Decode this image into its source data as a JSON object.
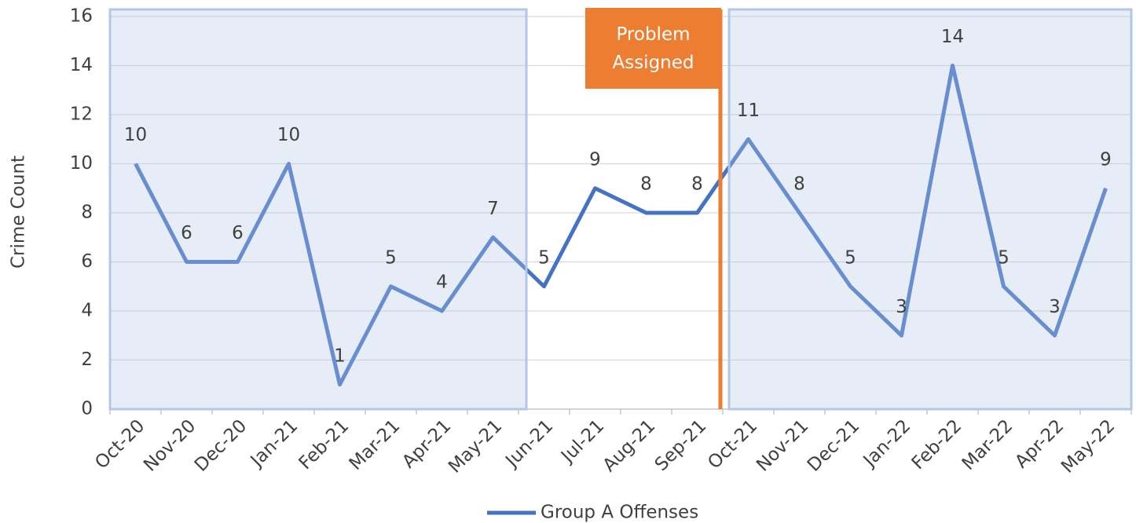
{
  "chart_data": {
    "type": "line",
    "y_axis_label": "Crime Count",
    "categories": [
      "Oct-20",
      "Nov-20",
      "Dec-20",
      "Jan-21",
      "Feb-21",
      "Mar-21",
      "Apr-21",
      "May-21",
      "Jun-21",
      "Jul-21",
      "Aug-21",
      "Sep-21",
      "Oct-21",
      "Nov-21",
      "Dec-21",
      "Jan-22",
      "Feb-22",
      "Mar-22",
      "Apr-22",
      "May-22"
    ],
    "series": [
      {
        "name": "Group A Offenses",
        "color": "#4472c4",
        "values": [
          10,
          6,
          6,
          10,
          1,
          5,
          4,
          7,
          5,
          9,
          8,
          8,
          11,
          8,
          5,
          3,
          14,
          5,
          3,
          9
        ]
      }
    ],
    "ylim": [
      0,
      16
    ],
    "yticks": [
      0,
      2,
      4,
      6,
      8,
      10,
      12,
      14,
      16
    ],
    "grid": true,
    "annotation": "Problem Assigned",
    "legend": "bottom"
  }
}
